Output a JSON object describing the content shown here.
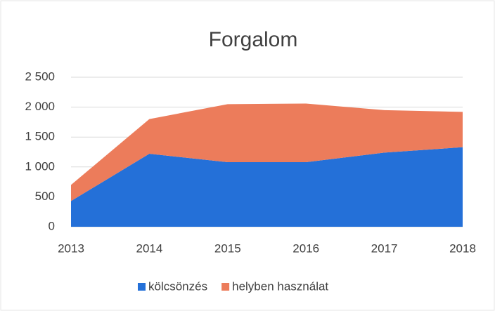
{
  "chart_data": {
    "type": "stacked-area",
    "title": "Forgalom",
    "categories": [
      "2013",
      "2014",
      "2015",
      "2016",
      "2017",
      "2018"
    ],
    "series": [
      {
        "name": "kölcsönzés",
        "color": "#2470d8",
        "values": [
          430,
          1220,
          1080,
          1080,
          1240,
          1330
        ]
      },
      {
        "name": "helyben használat",
        "color": "#ec7c5b",
        "values": [
          270,
          580,
          970,
          980,
          710,
          590
        ]
      }
    ],
    "ylim": [
      0,
      2500
    ],
    "yticks": [
      0,
      {
        "value": 500,
        "label": "500"
      },
      {
        "value": 1000,
        "label": "1 000"
      },
      {
        "value": 1500,
        "label": "1 500"
      },
      {
        "value": 2000,
        "label": "2 000"
      },
      {
        "value": 2500,
        "label": "2 500"
      }
    ],
    "grid": true,
    "legend": "bottom"
  }
}
